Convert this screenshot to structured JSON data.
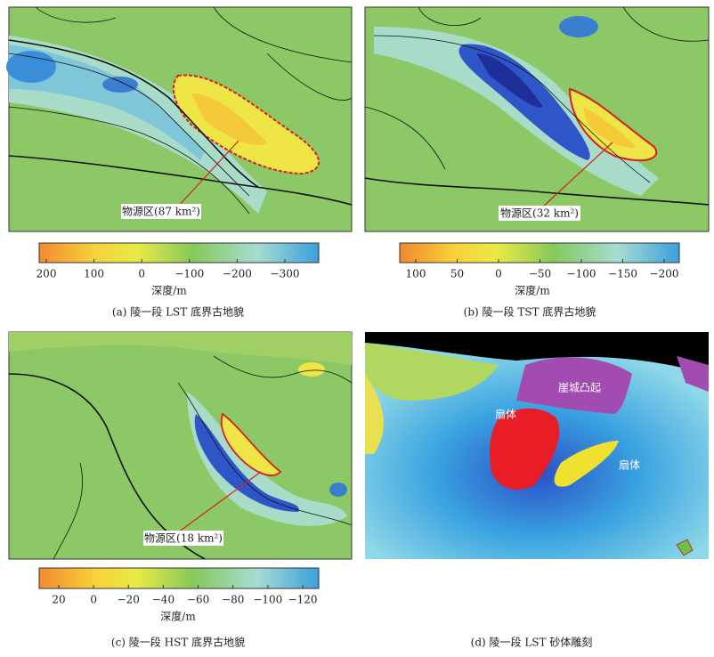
{
  "panels": [
    {
      "caption": "(a) 陵一段 LST 底界古地貌",
      "annotation": "物源区(87 km²)",
      "colorbar": {
        "label": "深度/m",
        "ticks": [
          "200",
          "100",
          "0",
          "−100",
          "−200",
          "−300"
        ]
      }
    },
    {
      "caption": "(b) 陵一段 TST 底界古地貌",
      "annotation": "物源区(32 km²)",
      "colorbar": {
        "label": "深度/m",
        "ticks": [
          "100",
          "50",
          "0",
          "−50",
          "−100",
          "−150",
          "−200"
        ]
      }
    },
    {
      "caption": "(c) 陵一段 HST 底界古地貌",
      "annotation": "物源区(18 km²)",
      "colorbar": {
        "label": "深度/m",
        "ticks": [
          "20",
          "0",
          "−20",
          "−40",
          "−60",
          "−80",
          "−100",
          "−120"
        ]
      }
    },
    {
      "caption": "(d) 陵一段 LST 砂体雕刻",
      "labels": [
        "崖城凸起",
        "扇体",
        "扇体"
      ]
    }
  ]
}
